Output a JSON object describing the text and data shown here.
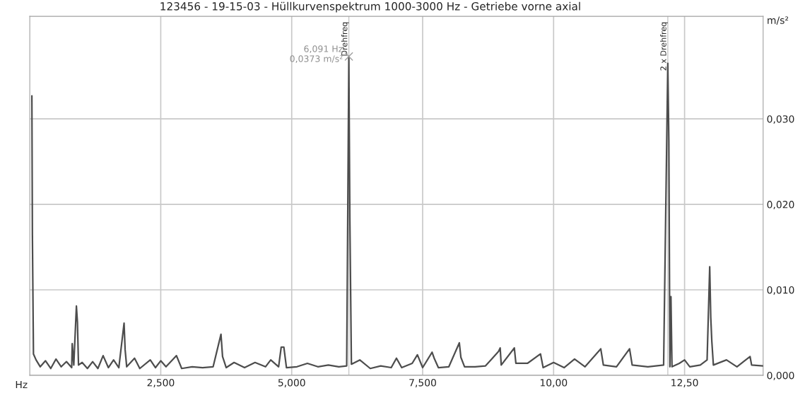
{
  "chart_data": {
    "type": "line",
    "title": "123456 - 19-15-03 - Hüllkurvenspektrum 1000-3000 Hz - Getriebe vorne axial",
    "xlabel": "Hz",
    "ylabel": "m/s²",
    "x": [
      0.04,
      0.05,
      0.07,
      0.12,
      0.2,
      0.3,
      0.4,
      0.5,
      0.6,
      0.7,
      0.8,
      0.81,
      0.84,
      0.89,
      0.91,
      0.93,
      1.0,
      1.1,
      1.2,
      1.3,
      1.4,
      1.5,
      1.6,
      1.7,
      1.8,
      1.82,
      1.85,
      2.0,
      2.1,
      2.3,
      2.4,
      2.5,
      2.6,
      2.8,
      2.9,
      3.1,
      3.3,
      3.5,
      3.65,
      3.68,
      3.75,
      3.9,
      4.1,
      4.3,
      4.5,
      4.6,
      4.75,
      4.8,
      4.85,
      4.9,
      5.1,
      5.3,
      5.5,
      5.7,
      5.9,
      6.05,
      6.091,
      6.11,
      6.14,
      6.3,
      6.5,
      6.7,
      6.9,
      7.0,
      7.1,
      7.3,
      7.4,
      7.5,
      7.68,
      7.72,
      7.8,
      8.0,
      8.2,
      8.23,
      8.3,
      8.5,
      8.7,
      8.95,
      8.98,
      9.0,
      9.25,
      9.28,
      9.5,
      9.75,
      9.8,
      10.0,
      10.2,
      10.4,
      10.6,
      10.9,
      10.95,
      11.2,
      11.45,
      11.5,
      11.8,
      12.1,
      12.18,
      12.2,
      12.22,
      12.24,
      12.26,
      12.4,
      12.5,
      12.6,
      12.8,
      12.93,
      12.98,
      13.0,
      13.02,
      13.05,
      13.3,
      13.5,
      13.75,
      13.78,
      14.0
    ],
    "series": [
      {
        "color": "#4d4d4d",
        "values": [
          0.0327,
          0.0164,
          0.0025,
          0.0018,
          0.001,
          0.0017,
          0.0008,
          0.0019,
          0.001,
          0.0016,
          0.0009,
          0.0037,
          0.0012,
          0.0081,
          0.0062,
          0.0012,
          0.0015,
          0.0008,
          0.0016,
          0.0008,
          0.0023,
          0.0009,
          0.0018,
          0.0009,
          0.0061,
          0.003,
          0.001,
          0.002,
          0.0008,
          0.0018,
          0.0009,
          0.0017,
          0.001,
          0.0023,
          0.0008,
          0.001,
          0.0009,
          0.001,
          0.0048,
          0.0022,
          0.0009,
          0.0015,
          0.0009,
          0.0015,
          0.001,
          0.0018,
          0.001,
          0.0033,
          0.0033,
          0.0009,
          0.001,
          0.0014,
          0.001,
          0.0012,
          0.001,
          0.0011,
          0.0373,
          0.0185,
          0.0013,
          0.0018,
          0.0008,
          0.0011,
          0.0009,
          0.002,
          0.0009,
          0.0014,
          0.0024,
          0.0009,
          0.0027,
          0.002,
          0.0009,
          0.001,
          0.0038,
          0.0021,
          0.001,
          0.001,
          0.0011,
          0.0028,
          0.0032,
          0.0012,
          0.0032,
          0.0014,
          0.0014,
          0.0025,
          0.0009,
          0.0015,
          0.0009,
          0.0019,
          0.001,
          0.0031,
          0.0012,
          0.001,
          0.0031,
          0.0012,
          0.001,
          0.0012,
          0.0365,
          0.0274,
          0.001,
          0.0092,
          0.001,
          0.0014,
          0.0018,
          0.001,
          0.0012,
          0.0018,
          0.0127,
          0.0068,
          0.004,
          0.0012,
          0.0018,
          0.001,
          0.0022,
          0.0012,
          0.0011
        ]
      }
    ],
    "xlim": [
      0,
      14.0
    ],
    "ylim": [
      0,
      0.042
    ],
    "xticks": [
      {
        "value": 2.5,
        "label": "2,500"
      },
      {
        "value": 5.0,
        "label": "5,000"
      },
      {
        "value": 7.5,
        "label": "7,500"
      },
      {
        "value": 10.0,
        "label": "10,00"
      },
      {
        "value": 12.5,
        "label": "12,50"
      }
    ],
    "yticks": [
      {
        "value": 0.0,
        "label": "0,000"
      },
      {
        "value": 0.01,
        "label": "0,010"
      },
      {
        "value": 0.02,
        "label": "0,020"
      },
      {
        "value": 0.03,
        "label": "0,030"
      }
    ],
    "ref_lines": [
      {
        "axis": "x",
        "value": 6.091,
        "label": "Drehfreq",
        "color": "#c8c8c8"
      },
      {
        "axis": "x",
        "value": 12.18,
        "label": "2 x Drehfreq",
        "color": "#c8c8c8"
      }
    ],
    "annotations": [
      {
        "text": "6,091 Hz\n0,0373 m/s²",
        "x": 6.091,
        "y": 0.0373
      }
    ],
    "grid": true,
    "marker": "none",
    "line_style": "solid",
    "legend": false
  }
}
